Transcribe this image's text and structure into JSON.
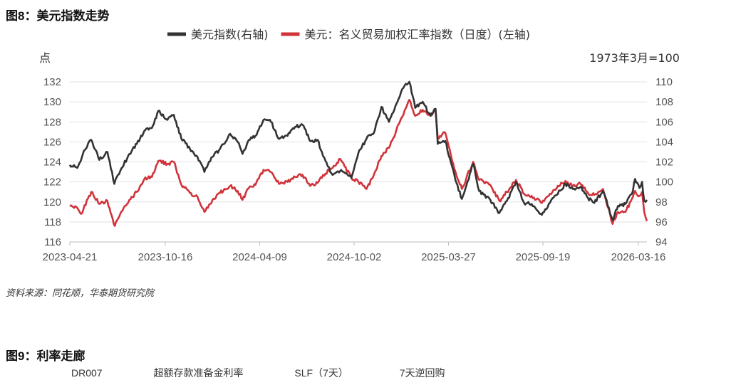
{
  "figure8": {
    "label": "图8：美元指数走势",
    "source": "资料来源：同花顺，华泰期货研究院"
  },
  "figure9": {
    "label": "图9：利率走廊",
    "legend_partial": [
      "DR007",
      "超额存款准备金利率",
      "SLF（7天）",
      "7天逆回购"
    ]
  },
  "chart_data": {
    "type": "line",
    "title": "",
    "xlabel": "",
    "y_left_label": "点",
    "y_right_label": "1973年3月=100",
    "ylim_left": [
      116,
      132
    ],
    "ylim_right": [
      94,
      110
    ],
    "y_left_ticks": [
      116,
      118,
      120,
      122,
      124,
      126,
      128,
      130,
      132
    ],
    "y_right_ticks": [
      94,
      96,
      98,
      100,
      102,
      104,
      106,
      108,
      110
    ],
    "x_tick_labels": [
      "2023-04-21",
      "2023-10-16",
      "2024-04-09",
      "2024-10-02",
      "2025-03-27",
      "2025-09-19",
      "2026-03-16"
    ],
    "x_range": [
      "2023-04-21",
      "2026-04-01"
    ],
    "grid": "horizontal",
    "legend_position": "top",
    "series": [
      {
        "name": "美元指数(右轴)",
        "axis": "right",
        "color": "#333333",
        "points": [
          [
            "2023-04-21",
            101.7
          ],
          [
            "2023-05-05",
            101.4
          ],
          [
            "2023-05-19",
            103.2
          ],
          [
            "2023-05-31",
            104.2
          ],
          [
            "2023-06-15",
            102.2
          ],
          [
            "2023-06-30",
            103.0
          ],
          [
            "2023-07-13",
            99.8
          ],
          [
            "2023-07-24",
            101.1
          ],
          [
            "2023-08-10",
            102.8
          ],
          [
            "2023-08-24",
            103.8
          ],
          [
            "2023-09-07",
            105.1
          ],
          [
            "2023-09-21",
            105.4
          ],
          [
            "2023-10-03",
            107.1
          ],
          [
            "2023-10-20",
            106.2
          ],
          [
            "2023-11-01",
            106.7
          ],
          [
            "2023-11-15",
            104.3
          ],
          [
            "2023-12-01",
            103.3
          ],
          [
            "2023-12-15",
            102.5
          ],
          [
            "2023-12-28",
            101.0
          ],
          [
            "2024-01-12",
            102.5
          ],
          [
            "2024-01-26",
            103.3
          ],
          [
            "2024-02-14",
            104.8
          ],
          [
            "2024-02-28",
            104.0
          ],
          [
            "2024-03-08",
            102.8
          ],
          [
            "2024-03-20",
            104.2
          ],
          [
            "2024-04-01",
            104.6
          ],
          [
            "2024-04-16",
            106.2
          ],
          [
            "2024-04-30",
            106.0
          ],
          [
            "2024-05-15",
            104.3
          ],
          [
            "2024-05-31",
            104.6
          ],
          [
            "2024-06-14",
            105.5
          ],
          [
            "2024-06-28",
            105.7
          ],
          [
            "2024-07-12",
            104.1
          ],
          [
            "2024-07-26",
            104.2
          ],
          [
            "2024-08-05",
            102.6
          ],
          [
            "2024-08-23",
            100.7
          ],
          [
            "2024-09-06",
            101.1
          ],
          [
            "2024-09-27",
            100.4
          ],
          [
            "2024-10-10",
            102.9
          ],
          [
            "2024-10-25",
            104.3
          ],
          [
            "2024-11-08",
            104.9
          ],
          [
            "2024-11-22",
            107.5
          ],
          [
            "2024-12-06",
            106.0
          ],
          [
            "2024-12-20",
            107.8
          ],
          [
            "2025-01-02",
            109.4
          ],
          [
            "2025-01-13",
            110.0
          ],
          [
            "2025-01-24",
            107.4
          ],
          [
            "2025-02-07",
            108.0
          ],
          [
            "2025-02-21",
            106.6
          ],
          [
            "2025-03-03",
            107.3
          ],
          [
            "2025-03-07",
            103.8
          ],
          [
            "2025-03-21",
            104.1
          ],
          [
            "2025-04-03",
            101.5
          ],
          [
            "2025-04-11",
            99.9
          ],
          [
            "2025-04-21",
            98.3
          ],
          [
            "2025-05-12",
            101.8
          ],
          [
            "2025-05-23",
            99.1
          ],
          [
            "2025-06-13",
            98.2
          ],
          [
            "2025-06-30",
            96.9
          ],
          [
            "2025-07-14",
            98.1
          ],
          [
            "2025-07-31",
            100.0
          ],
          [
            "2025-08-15",
            97.9
          ],
          [
            "2025-08-29",
            97.8
          ],
          [
            "2025-09-17",
            96.7
          ],
          [
            "2025-09-30",
            97.8
          ],
          [
            "2025-10-15",
            98.7
          ],
          [
            "2025-10-31",
            99.8
          ],
          [
            "2025-11-14",
            99.3
          ],
          [
            "2025-11-28",
            99.5
          ],
          [
            "2025-12-12",
            98.4
          ],
          [
            "2025-12-24",
            97.9
          ],
          [
            "2026-01-09",
            99.1
          ],
          [
            "2026-01-27",
            96.2
          ],
          [
            "2026-02-06",
            97.6
          ],
          [
            "2026-02-20",
            97.8
          ],
          [
            "2026-03-04",
            98.8
          ],
          [
            "2026-03-10",
            100.3
          ],
          [
            "2026-03-18",
            99.4
          ],
          [
            "2026-03-23",
            100.0
          ],
          [
            "2026-03-27",
            98.1
          ],
          [
            "2026-04-01",
            98.2
          ]
        ]
      },
      {
        "name": "美元：名义贸易加权汇率指数（日度）(左轴)",
        "axis": "left",
        "color": "#d0333a",
        "points": [
          [
            "2023-04-21",
            119.6
          ],
          [
            "2023-05-05",
            119.4
          ],
          [
            "2023-05-12",
            118.8
          ],
          [
            "2023-05-31",
            121.0
          ],
          [
            "2023-06-15",
            119.8
          ],
          [
            "2023-06-30",
            120.1
          ],
          [
            "2023-07-14",
            117.6
          ],
          [
            "2023-07-24",
            118.8
          ],
          [
            "2023-08-10",
            120.2
          ],
          [
            "2023-08-24",
            121.0
          ],
          [
            "2023-09-07",
            122.3
          ],
          [
            "2023-09-21",
            122.5
          ],
          [
            "2023-10-03",
            124.1
          ],
          [
            "2023-10-20",
            123.8
          ],
          [
            "2023-11-01",
            124.0
          ],
          [
            "2023-11-15",
            121.7
          ],
          [
            "2023-12-01",
            120.9
          ],
          [
            "2023-12-15",
            120.5
          ],
          [
            "2023-12-28",
            119.0
          ],
          [
            "2024-01-12",
            120.2
          ],
          [
            "2024-01-26",
            120.9
          ],
          [
            "2024-02-14",
            121.6
          ],
          [
            "2024-02-28",
            121.1
          ],
          [
            "2024-03-08",
            120.2
          ],
          [
            "2024-03-20",
            121.4
          ],
          [
            "2024-04-01",
            121.7
          ],
          [
            "2024-04-16",
            123.2
          ],
          [
            "2024-04-30",
            123.0
          ],
          [
            "2024-05-15",
            121.8
          ],
          [
            "2024-05-31",
            122.0
          ],
          [
            "2024-06-14",
            122.5
          ],
          [
            "2024-06-28",
            122.7
          ],
          [
            "2024-07-12",
            121.6
          ],
          [
            "2024-07-26",
            121.9
          ],
          [
            "2024-08-05",
            122.7
          ],
          [
            "2024-08-23",
            123.4
          ],
          [
            "2024-09-06",
            124.3
          ],
          [
            "2024-09-27",
            122.4
          ],
          [
            "2024-10-10",
            122.0
          ],
          [
            "2024-10-25",
            121.3
          ],
          [
            "2024-11-08",
            122.7
          ],
          [
            "2024-11-22",
            124.6
          ],
          [
            "2024-12-06",
            125.4
          ],
          [
            "2024-12-20",
            127.2
          ],
          [
            "2025-01-02",
            128.7
          ],
          [
            "2025-01-13",
            130.2
          ],
          [
            "2025-01-24",
            128.6
          ],
          [
            "2025-02-07",
            129.2
          ],
          [
            "2025-02-21",
            128.7
          ],
          [
            "2025-03-03",
            129.0
          ],
          [
            "2025-03-07",
            126.4
          ],
          [
            "2025-03-21",
            126.9
          ],
          [
            "2025-04-03",
            124.1
          ],
          [
            "2025-04-11",
            122.6
          ],
          [
            "2025-04-21",
            121.3
          ],
          [
            "2025-05-12",
            124.0
          ],
          [
            "2025-05-23",
            122.2
          ],
          [
            "2025-06-13",
            121.7
          ],
          [
            "2025-06-30",
            120.1
          ],
          [
            "2025-07-14",
            121.0
          ],
          [
            "2025-07-31",
            122.2
          ],
          [
            "2025-08-15",
            120.8
          ],
          [
            "2025-08-29",
            120.6
          ],
          [
            "2025-09-17",
            119.9
          ],
          [
            "2025-09-30",
            120.6
          ],
          [
            "2025-10-15",
            121.4
          ],
          [
            "2025-10-31",
            122.1
          ],
          [
            "2025-11-14",
            121.6
          ],
          [
            "2025-11-28",
            121.8
          ],
          [
            "2025-12-12",
            120.9
          ],
          [
            "2025-12-24",
            120.7
          ],
          [
            "2026-01-09",
            121.3
          ],
          [
            "2026-01-27",
            117.8
          ],
          [
            "2026-02-06",
            119.0
          ],
          [
            "2026-02-20",
            119.0
          ],
          [
            "2026-03-04",
            120.3
          ],
          [
            "2026-03-10",
            121.1
          ],
          [
            "2026-03-18",
            120.6
          ],
          [
            "2026-03-23",
            121.0
          ],
          [
            "2026-03-27",
            119.0
          ],
          [
            "2026-04-01",
            118.1
          ]
        ]
      }
    ]
  }
}
